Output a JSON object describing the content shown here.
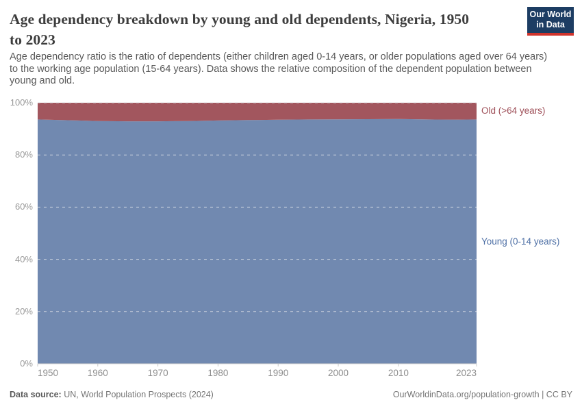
{
  "header": {
    "title_lines": [
      "Age dependency breakdown by young and old dependents, Nigeria, 1950",
      "to 2023"
    ],
    "subtitle_lines": [
      "Age dependency ratio is the ratio of dependents (either children aged 0-14 years, or older populations aged over 64 years)",
      "to the working age population (15-64 years). Data shows the relative composition of the dependent population between",
      "young and old."
    ],
    "logo": {
      "line1": "Our World",
      "line2": "in Data",
      "bg_color": "#1d3d63",
      "stripe_color": "#d0342c"
    }
  },
  "chart_data": {
    "type": "area",
    "stacked": true,
    "title": "Age dependency breakdown by young and old dependents, Nigeria, 1950 to 2023",
    "unit": "%",
    "xlim": [
      1950,
      2023
    ],
    "ylim": [
      0,
      100
    ],
    "grid": "horizontal-dashed",
    "legend": "labels-right-of-plot",
    "x": [
      1950,
      1955,
      1960,
      1965,
      1970,
      1975,
      1980,
      1985,
      1990,
      1995,
      2000,
      2005,
      2010,
      2015,
      2020,
      2023
    ],
    "series": [
      {
        "name": "Young (0-14 years)",
        "color": "#7189b0",
        "label_color": "#4d6fa5",
        "values": [
          93.6,
          93.3,
          93.0,
          92.9,
          92.9,
          93.0,
          93.2,
          93.35,
          93.5,
          93.6,
          93.65,
          93.7,
          93.75,
          93.6,
          93.55,
          93.6
        ]
      },
      {
        "name": "Old (>64 years)",
        "color": "#a2565e",
        "label_color": "#9e4e57",
        "values": [
          6.4,
          6.7,
          7.0,
          7.1,
          7.1,
          7.0,
          6.8,
          6.65,
          6.5,
          6.4,
          6.35,
          6.3,
          6.25,
          6.4,
          6.45,
          6.4
        ]
      }
    ],
    "xticks": [
      1950,
      1960,
      1970,
      1980,
      1990,
      2000,
      2010,
      2023
    ],
    "yticks": [
      0,
      20,
      40,
      60,
      80,
      100
    ],
    "ytick_suffix": "%"
  },
  "footer": {
    "source_label": "Data source:",
    "source_value": "UN, World Population Prospects (2024)",
    "link": "OurWorldinData.org/population-growth | CC BY"
  }
}
